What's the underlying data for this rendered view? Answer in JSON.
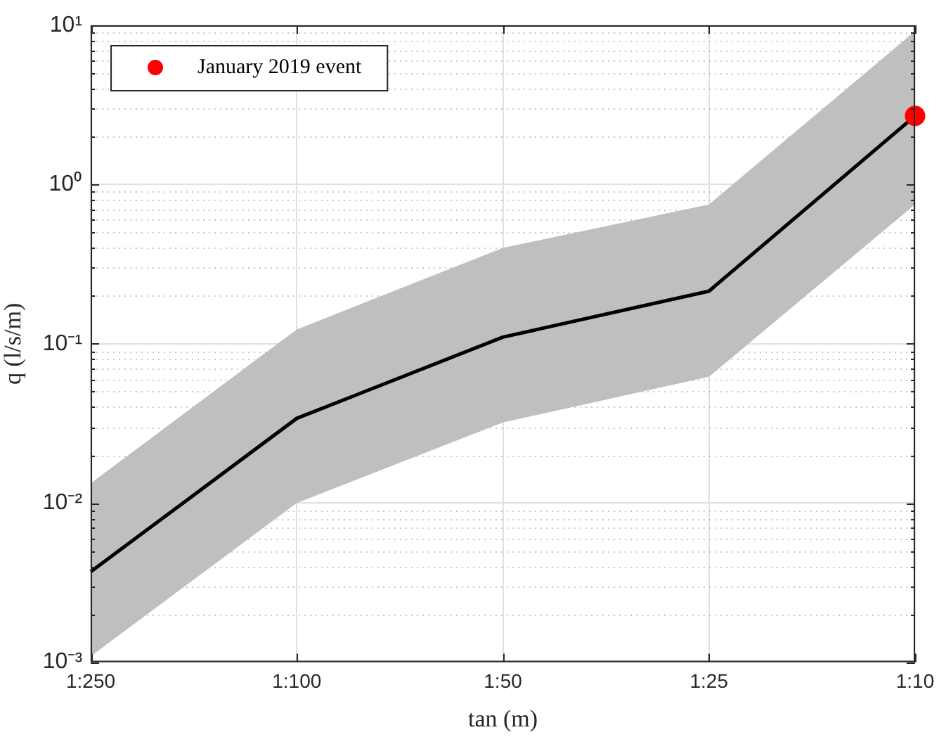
{
  "chart_data": {
    "type": "line",
    "xlabel": "tan (m)",
    "ylabel": "q (l/s/m)",
    "log": "y",
    "grid": true,
    "legend": "top left",
    "categories": [
      "1:250",
      "1:100",
      "1:50",
      "1:25",
      "1:10"
    ],
    "ylim": [
      0.001,
      10
    ],
    "yticks": [
      {
        "value": 0.001,
        "label": "10⁻³"
      },
      {
        "value": 0.01,
        "label": "10⁻²"
      },
      {
        "value": 0.1,
        "label": "10⁻¹"
      },
      {
        "value": 1,
        "label": "10⁰"
      },
      {
        "value": 10,
        "label": "10¹"
      }
    ],
    "series": [
      {
        "color": "#000000",
        "values": [
          0.0037,
          0.034,
          0.11,
          0.214,
          2.7
        ],
        "lower": [
          0.00109,
          0.01,
          0.032,
          0.062,
          0.75
        ],
        "upper": [
          0.0133,
          0.123,
          0.4,
          0.75,
          9.2
        ],
        "marker": "none"
      },
      {
        "type": "scatter",
        "name": "January 2019 event",
        "color": "#ff0000",
        "x": [
          "1:10"
        ],
        "values": [
          2.7
        ],
        "marker": "circle"
      }
    ]
  }
}
